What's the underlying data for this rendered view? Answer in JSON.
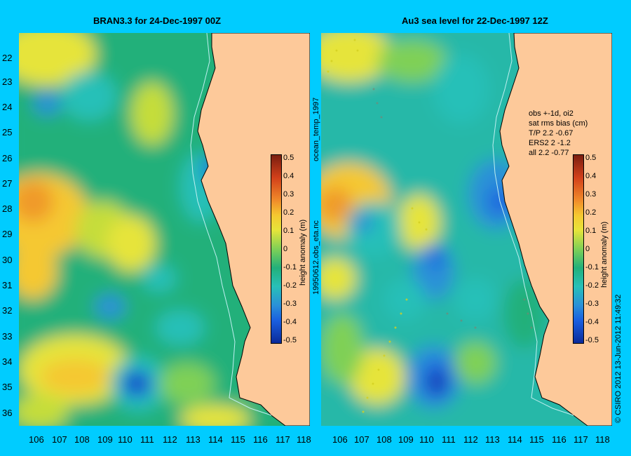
{
  "left_panel": {
    "title": "BRAN3.3 for 24-Dec-1997 00Z"
  },
  "right_panel": {
    "title": "Au3 sea level  for 22-Dec-1997 12Z",
    "stats": [
      "obs +-1d, oi2",
      "sat rms bias (cm)",
      "T/P  2.2 -0.67",
      "ERS2 2 -1.2",
      "all 2.2 -0.77"
    ]
  },
  "y_ticks": [
    "22",
    "23",
    "24",
    "25",
    "26",
    "27",
    "28",
    "29",
    "30",
    "31",
    "32",
    "33",
    "34",
    "35",
    "36"
  ],
  "x_ticks": [
    "106",
    "107",
    "108",
    "109",
    "110",
    "111",
    "112",
    "113",
    "114",
    "115",
    "116",
    "117",
    "118"
  ],
  "colorbar": {
    "title": "height anomaly (m)",
    "ticks": [
      "0.5",
      "0.4",
      "0.3",
      "0.2",
      "0.1",
      "0",
      "-0.1",
      "-0.2",
      "-0.3",
      "-0.4",
      "-0.5"
    ]
  },
  "side_text": {
    "file_a": "ocean_temp_1997",
    "file_b": "19950612.obs_eta.nc",
    "credit": "© CSIRO 2012   13-Jun-2012 11:49:32"
  },
  "colors": {
    "background": "#00ccff",
    "land": "#fdc99a",
    "ocean_mid": "#22b07a"
  }
}
